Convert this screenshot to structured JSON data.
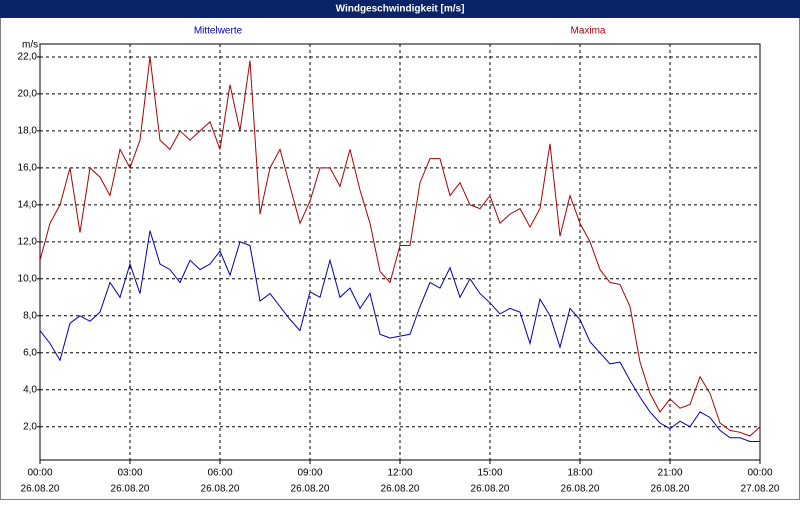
{
  "chart_data": {
    "type": "line",
    "title": "Windgeschwindigkeit [m/s]",
    "ylabel": "m/s",
    "x": [
      0,
      20,
      40,
      60,
      80,
      100,
      120,
      140,
      160,
      180,
      200,
      220,
      240,
      260,
      280,
      300,
      320,
      340,
      360,
      380,
      400,
      420,
      440,
      460,
      480,
      500,
      520,
      540,
      560,
      580,
      600,
      620,
      640,
      660,
      680,
      700,
      720,
      740,
      760,
      780,
      800,
      820,
      840,
      860,
      880,
      900,
      920,
      940,
      960,
      980,
      1000,
      1020,
      1040,
      1060,
      1080,
      1100,
      1120,
      1140,
      1160,
      1180,
      1200,
      1220,
      1240,
      1260,
      1280,
      1300,
      1320,
      1340,
      1360,
      1380,
      1400,
      1420,
      1440
    ],
    "series": [
      {
        "name": "Mittelwerte",
        "color": "#0000b0",
        "values": [
          7.2,
          6.5,
          5.6,
          7.6,
          8.0,
          7.7,
          8.2,
          9.8,
          9.0,
          10.8,
          9.2,
          12.6,
          10.8,
          10.5,
          9.8,
          11.0,
          10.5,
          10.8,
          11.5,
          10.2,
          12.0,
          11.8,
          8.8,
          9.2,
          8.5,
          7.8,
          7.2,
          9.3,
          9.0,
          11.0,
          9.0,
          9.5,
          8.4,
          9.2,
          7.0,
          6.8,
          6.9,
          7.0,
          8.5,
          9.8,
          9.5,
          10.6,
          9.0,
          10.0,
          9.2,
          8.7,
          8.1,
          8.4,
          8.2,
          6.5,
          8.9,
          8.0,
          6.3,
          8.4,
          7.8,
          6.6,
          6.0,
          5.4,
          5.5,
          4.5,
          3.6,
          2.8,
          2.2,
          1.9,
          2.3,
          2.0,
          2.8,
          2.5,
          1.8,
          1.4,
          1.4,
          1.2,
          1.2
        ]
      },
      {
        "name": "Maxima",
        "color": "#b00000",
        "values": [
          11.0,
          13.0,
          14.0,
          16.0,
          12.5,
          16.0,
          15.5,
          14.5,
          17.0,
          16.0,
          17.5,
          22.0,
          17.5,
          17.0,
          18.0,
          17.5,
          18.0,
          18.5,
          17.0,
          20.5,
          18.0,
          21.8,
          13.5,
          16.0,
          17.0,
          15.0,
          13.0,
          14.2,
          16.0,
          16.0,
          15.0,
          17.0,
          14.8,
          13.0,
          10.4,
          9.8,
          11.8,
          11.8,
          15.2,
          16.5,
          16.5,
          14.5,
          15.2,
          14.0,
          13.8,
          14.5,
          13.0,
          13.5,
          13.8,
          12.8,
          13.8,
          17.3,
          12.3,
          14.5,
          13.0,
          12.0,
          10.5,
          9.8,
          9.7,
          8.5,
          5.5,
          3.8,
          2.8,
          3.5,
          3.0,
          3.2,
          4.7,
          3.8,
          2.2,
          1.8,
          1.7,
          1.5,
          2.0
        ]
      }
    ],
    "xlim": [
      0,
      1440
    ],
    "xticks": [
      {
        "value": 0,
        "label": "00:00"
      },
      {
        "value": 180,
        "label": "03:00"
      },
      {
        "value": 360,
        "label": "06:00"
      },
      {
        "value": 540,
        "label": "09:00"
      },
      {
        "value": 720,
        "label": "12:00"
      },
      {
        "value": 900,
        "label": "15:00"
      },
      {
        "value": 1080,
        "label": "18:00"
      },
      {
        "value": 1260,
        "label": "21:00"
      },
      {
        "value": 1440,
        "label": "00:00"
      }
    ],
    "xtick_dates": [
      "26.08.20",
      "26.08.20",
      "26.08.20",
      "26.08.20",
      "26.08.20",
      "26.08.20",
      "26.08.20",
      "26.08.20",
      "27.08.20"
    ],
    "ylim": [
      0.2,
      22.7
    ],
    "yticks": [
      {
        "value": 2,
        "label": "2,0"
      },
      {
        "value": 4,
        "label": "4,0"
      },
      {
        "value": 6,
        "label": "6,0"
      },
      {
        "value": 8,
        "label": "8,0"
      },
      {
        "value": 10,
        "label": "10,0"
      },
      {
        "value": 12,
        "label": "12,0"
      },
      {
        "value": 14,
        "label": "14,0"
      },
      {
        "value": 16,
        "label": "16,0"
      },
      {
        "value": 18,
        "label": "18,0"
      },
      {
        "value": 20,
        "label": "20,0"
      },
      {
        "value": 22,
        "label": "22,0"
      }
    ],
    "grid": true
  }
}
